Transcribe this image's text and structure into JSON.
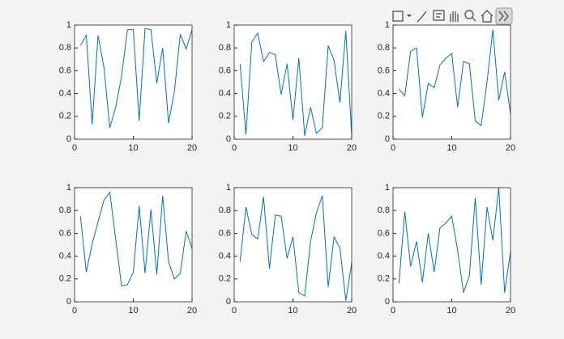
{
  "chart_data": [
    {
      "type": "line",
      "x": [
        1,
        2,
        3,
        4,
        5,
        6,
        7,
        8,
        9,
        10,
        11,
        12,
        13,
        14,
        15,
        16,
        17,
        18,
        19,
        20
      ],
      "series": [
        {
          "color": "#0072bd",
          "values": [
            0.82,
            0.91,
            0.13,
            0.91,
            0.63,
            0.1,
            0.28,
            0.55,
            0.96,
            0.96,
            0.16,
            0.97,
            0.96,
            0.49,
            0.8,
            0.14,
            0.42,
            0.92,
            0.79,
            0.96
          ]
        }
      ],
      "xlim": [
        0,
        20
      ],
      "ylim": [
        0,
        1
      ],
      "xticks": [
        0,
        10,
        20
      ],
      "yticks": [
        0,
        0.2,
        0.4,
        0.6,
        0.8,
        1
      ]
    },
    {
      "type": "line",
      "x": [
        1,
        2,
        3,
        4,
        5,
        6,
        7,
        8,
        9,
        10,
        11,
        12,
        13,
        14,
        15,
        16,
        17,
        18,
        19,
        20
      ],
      "series": [
        {
          "color": "#0072bd",
          "values": [
            0.66,
            0.04,
            0.85,
            0.93,
            0.68,
            0.76,
            0.74,
            0.39,
            0.66,
            0.17,
            0.71,
            0.03,
            0.28,
            0.05,
            0.1,
            0.82,
            0.69,
            0.32,
            0.95,
            0.03
          ]
        }
      ],
      "xlim": [
        0,
        20
      ],
      "ylim": [
        0,
        1
      ],
      "xticks": [
        0,
        10,
        20
      ],
      "yticks": [
        0,
        0.2,
        0.4,
        0.6,
        0.8,
        1
      ]
    },
    {
      "type": "line",
      "x": [
        1,
        2,
        3,
        4,
        5,
        6,
        7,
        8,
        9,
        10,
        11,
        12,
        13,
        14,
        15,
        16,
        17,
        18,
        19,
        20
      ],
      "series": [
        {
          "color": "#0072bd",
          "values": [
            0.44,
            0.38,
            0.77,
            0.8,
            0.19,
            0.49,
            0.45,
            0.65,
            0.71,
            0.75,
            0.28,
            0.68,
            0.66,
            0.16,
            0.12,
            0.5,
            0.96,
            0.34,
            0.59,
            0.22
          ]
        }
      ],
      "xlim": [
        0,
        20
      ],
      "ylim": [
        0,
        1
      ],
      "xticks": [
        0,
        10,
        20
      ],
      "yticks": [
        0,
        0.2,
        0.4,
        0.6,
        0.8,
        1
      ]
    },
    {
      "type": "line",
      "x": [
        1,
        2,
        3,
        4,
        5,
        6,
        7,
        8,
        9,
        10,
        11,
        12,
        13,
        14,
        15,
        16,
        17,
        18,
        19,
        20
      ],
      "series": [
        {
          "color": "#0072bd",
          "values": [
            0.75,
            0.26,
            0.51,
            0.7,
            0.89,
            0.96,
            0.55,
            0.14,
            0.15,
            0.26,
            0.84,
            0.25,
            0.81,
            0.24,
            0.93,
            0.35,
            0.2,
            0.25,
            0.62,
            0.47
          ]
        }
      ],
      "xlim": [
        0,
        20
      ],
      "ylim": [
        0,
        1
      ],
      "xticks": [
        0,
        10,
        20
      ],
      "yticks": [
        0,
        0.2,
        0.4,
        0.6,
        0.8,
        1
      ]
    },
    {
      "type": "line",
      "x": [
        1,
        2,
        3,
        4,
        5,
        6,
        7,
        8,
        9,
        10,
        11,
        12,
        13,
        14,
        15,
        16,
        17,
        18,
        19,
        20
      ],
      "series": [
        {
          "color": "#0072bd",
          "values": [
            0.35,
            0.83,
            0.59,
            0.55,
            0.92,
            0.29,
            0.76,
            0.75,
            0.38,
            0.57,
            0.08,
            0.05,
            0.53,
            0.78,
            0.93,
            0.13,
            0.57,
            0.47,
            0.01,
            0.34
          ]
        }
      ],
      "xlim": [
        0,
        20
      ],
      "ylim": [
        0,
        1
      ],
      "xticks": [
        0,
        10,
        20
      ],
      "yticks": [
        0,
        0.2,
        0.4,
        0.6,
        0.8,
        1
      ]
    },
    {
      "type": "line",
      "x": [
        1,
        2,
        3,
        4,
        5,
        6,
        7,
        8,
        9,
        10,
        11,
        12,
        13,
        14,
        15,
        16,
        17,
        18,
        19,
        20
      ],
      "series": [
        {
          "color": "#0072bd",
          "values": [
            0.16,
            0.79,
            0.31,
            0.53,
            0.17,
            0.6,
            0.26,
            0.65,
            0.69,
            0.75,
            0.45,
            0.08,
            0.23,
            0.91,
            0.15,
            0.83,
            0.54,
            1.0,
            0.08,
            0.44
          ]
        }
      ],
      "xlim": [
        0,
        20
      ],
      "ylim": [
        0,
        1
      ],
      "xticks": [
        0,
        10,
        20
      ],
      "yticks": [
        0,
        0.2,
        0.4,
        0.6,
        0.8,
        1
      ]
    }
  ]
}
